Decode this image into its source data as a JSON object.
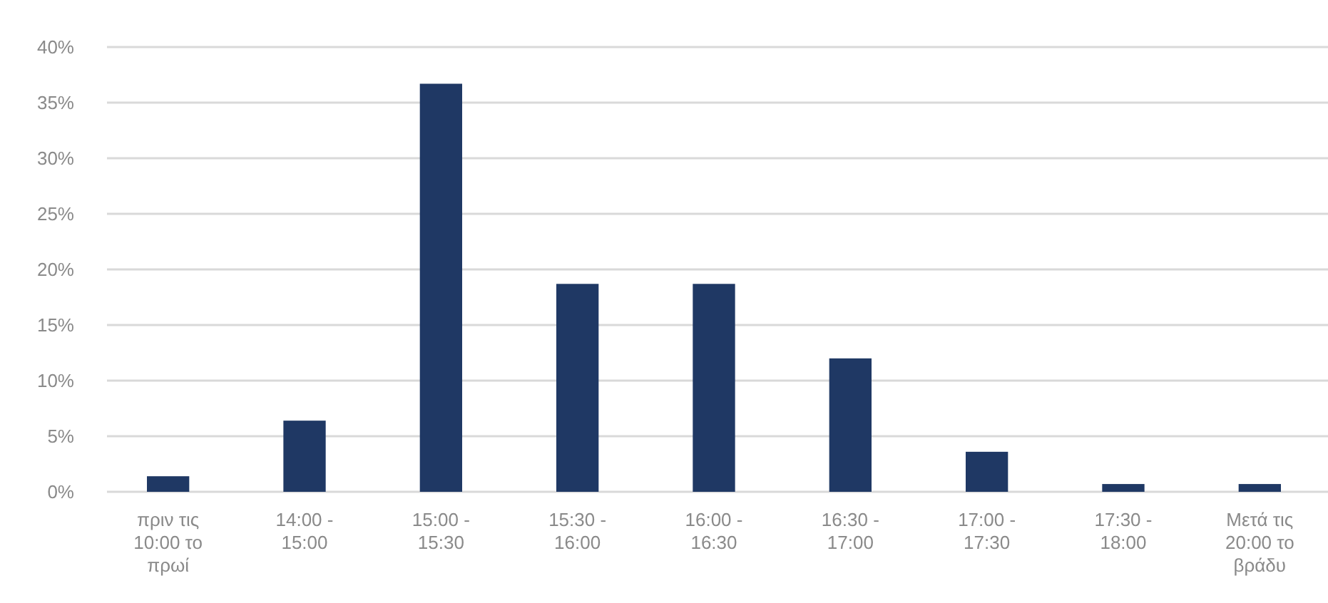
{
  "chart_data": {
    "type": "bar",
    "categories": [
      "πριν τις 10:00 το πρωί",
      "14:00 - 15:00",
      "15:00 - 15:30",
      "15:30 - 16:00",
      "16:00 - 16:30",
      "16:30 - 17:00",
      "17:00 - 17:30",
      "17:30 - 18:00",
      "Μετά τις 20:00 το βράδυ"
    ],
    "values": [
      1.4,
      6.4,
      36.7,
      18.7,
      18.7,
      12.0,
      3.6,
      0.7,
      0.7
    ],
    "color": "#1f3864",
    "ylim": [
      0,
      40
    ],
    "yticks": [
      {
        "value": 0,
        "label": "0%"
      },
      {
        "value": 5,
        "label": "5%"
      },
      {
        "value": 10,
        "label": "10%"
      },
      {
        "value": 15,
        "label": "15%"
      },
      {
        "value": 20,
        "label": "20%"
      },
      {
        "value": 25,
        "label": "25%"
      },
      {
        "value": 30,
        "label": "30%"
      },
      {
        "value": 35,
        "label": "35%"
      },
      {
        "value": 40,
        "label": "40%"
      }
    ],
    "grid": "y"
  }
}
